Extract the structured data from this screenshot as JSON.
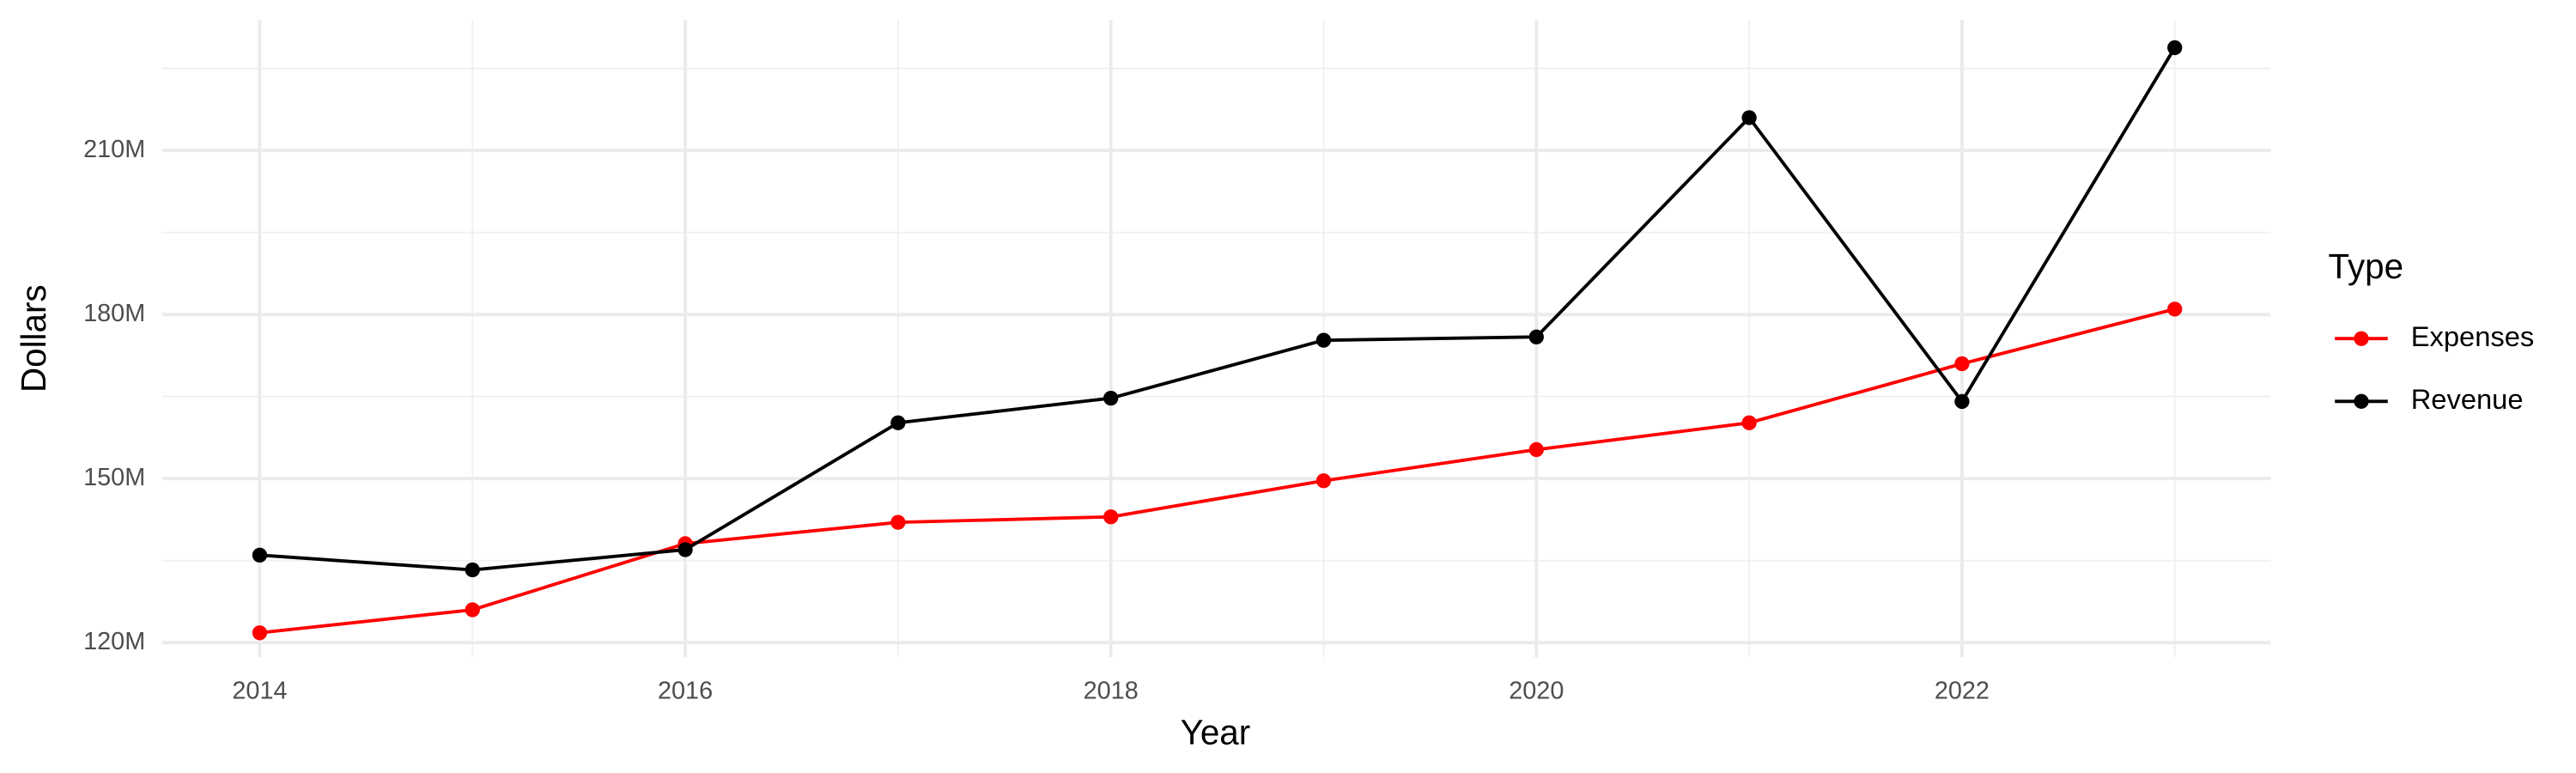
{
  "chart_data": {
    "type": "line",
    "x_label": "Year",
    "y_label": "Dollars",
    "legend_title": "Type",
    "legend_position": "right",
    "grid": true,
    "x": [
      2014,
      2015,
      2016,
      2017,
      2018,
      2019,
      2020,
      2021,
      2022,
      2023
    ],
    "series": [
      {
        "name": "Expenses",
        "color": "#ff0000",
        "values": [
          121800000,
          126000000,
          138100000,
          142000000,
          143000000,
          149600000,
          155300000,
          160200000,
          171000000,
          181000000
        ]
      },
      {
        "name": "Revenue",
        "color": "#000000",
        "values": [
          136000000,
          133300000,
          137000000,
          160200000,
          164700000,
          175300000,
          175900000,
          216000000,
          164100000,
          228800000
        ]
      }
    ],
    "xlim": [
      2013.54,
      2023.45
    ],
    "xticks": [
      2014,
      2016,
      2018,
      2020,
      2022
    ],
    "x_minor_ticks": [
      2015,
      2017,
      2019,
      2021,
      2023
    ],
    "ylim": [
      117300000,
      233900000
    ],
    "yticks": [
      {
        "value": 120000000,
        "label": "120M"
      },
      {
        "value": 150000000,
        "label": "150M"
      },
      {
        "value": 180000000,
        "label": "180M"
      },
      {
        "value": 210000000,
        "label": "210M"
      }
    ],
    "y_minor_ticks": [
      135000000,
      165000000,
      195000000,
      225000000
    ]
  }
}
